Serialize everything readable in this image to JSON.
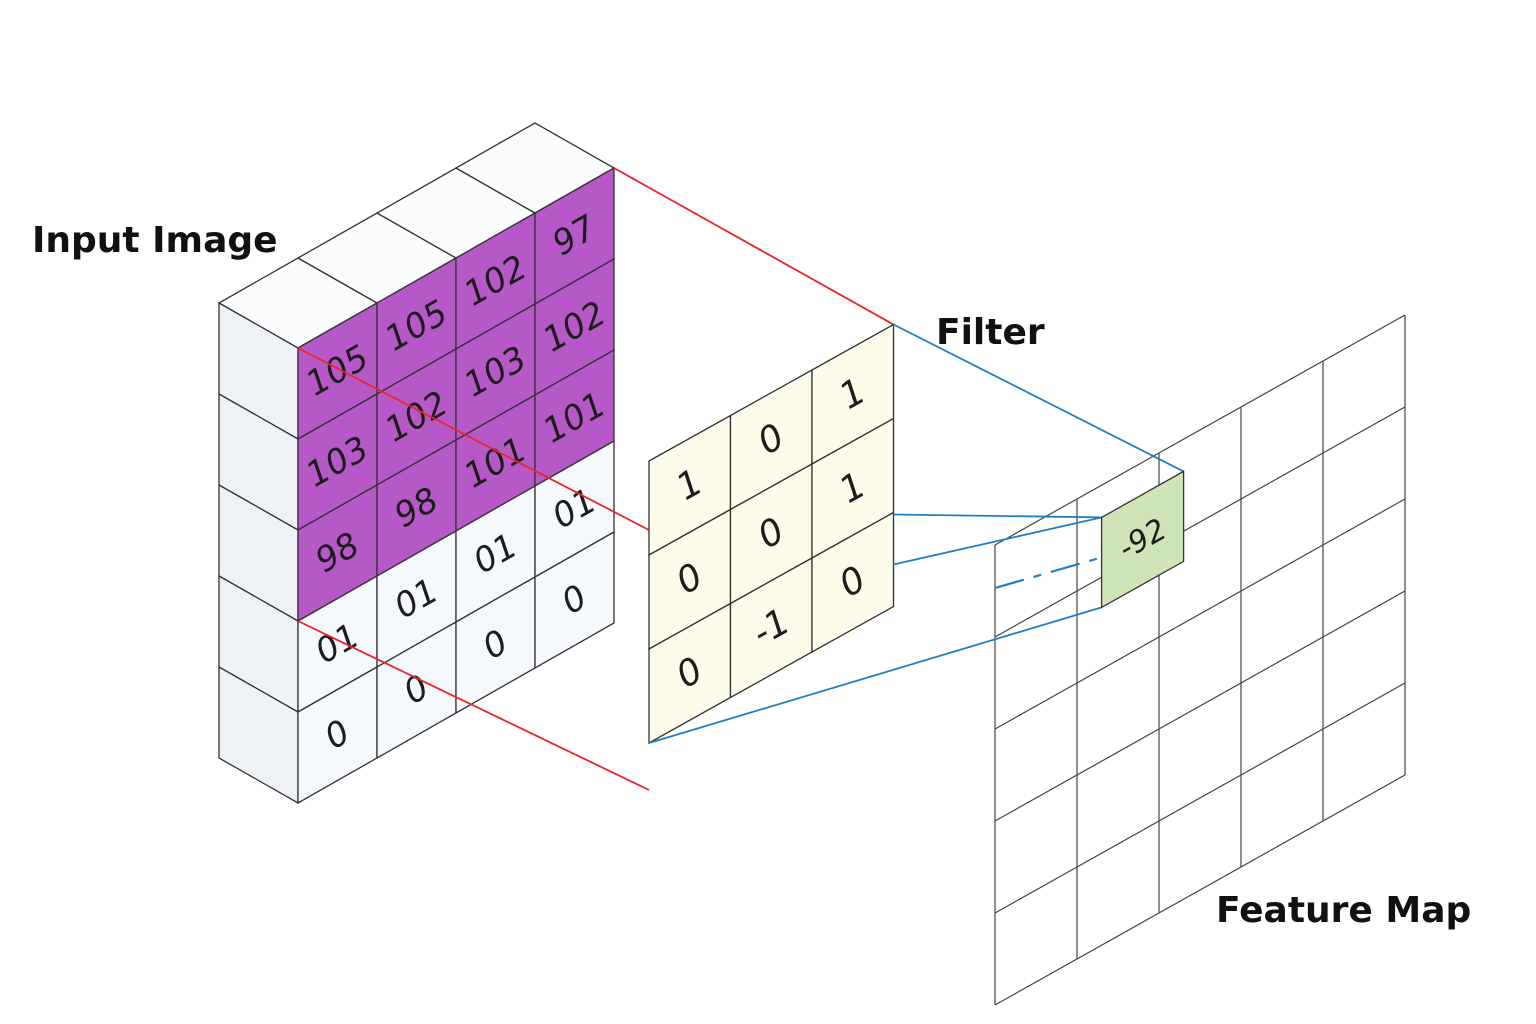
{
  "labels": {
    "input": "Input Image",
    "filter": "Filter",
    "feature_map": "Feature Map"
  },
  "input_image": {
    "rows": [
      [
        "105",
        "105",
        "102",
        "97"
      ],
      [
        "103",
        "102",
        "103",
        "102"
      ],
      [
        "98",
        "98",
        "101",
        "101"
      ],
      [
        "01",
        "01",
        "01",
        "01"
      ],
      [
        "0",
        "0",
        "0",
        "0"
      ]
    ],
    "highlight_rows": 3
  },
  "filter": {
    "rows": [
      [
        "1",
        "0",
        "1"
      ],
      [
        "0",
        "0",
        "1"
      ],
      [
        "0",
        "-1",
        "0"
      ]
    ]
  },
  "feature_map": {
    "result": "-92"
  },
  "colors": {
    "highlight": "#b758c8",
    "cube_face": "#f5f8fc",
    "cube_top": "#fbfcfe",
    "cube_side": "#eef2f7",
    "filter_fill": "#fdfbea",
    "result_fill": "#cfe5b8",
    "red_line": "#e8262a",
    "blue_line": "#1f7fc2",
    "grid_line": "#444444"
  }
}
